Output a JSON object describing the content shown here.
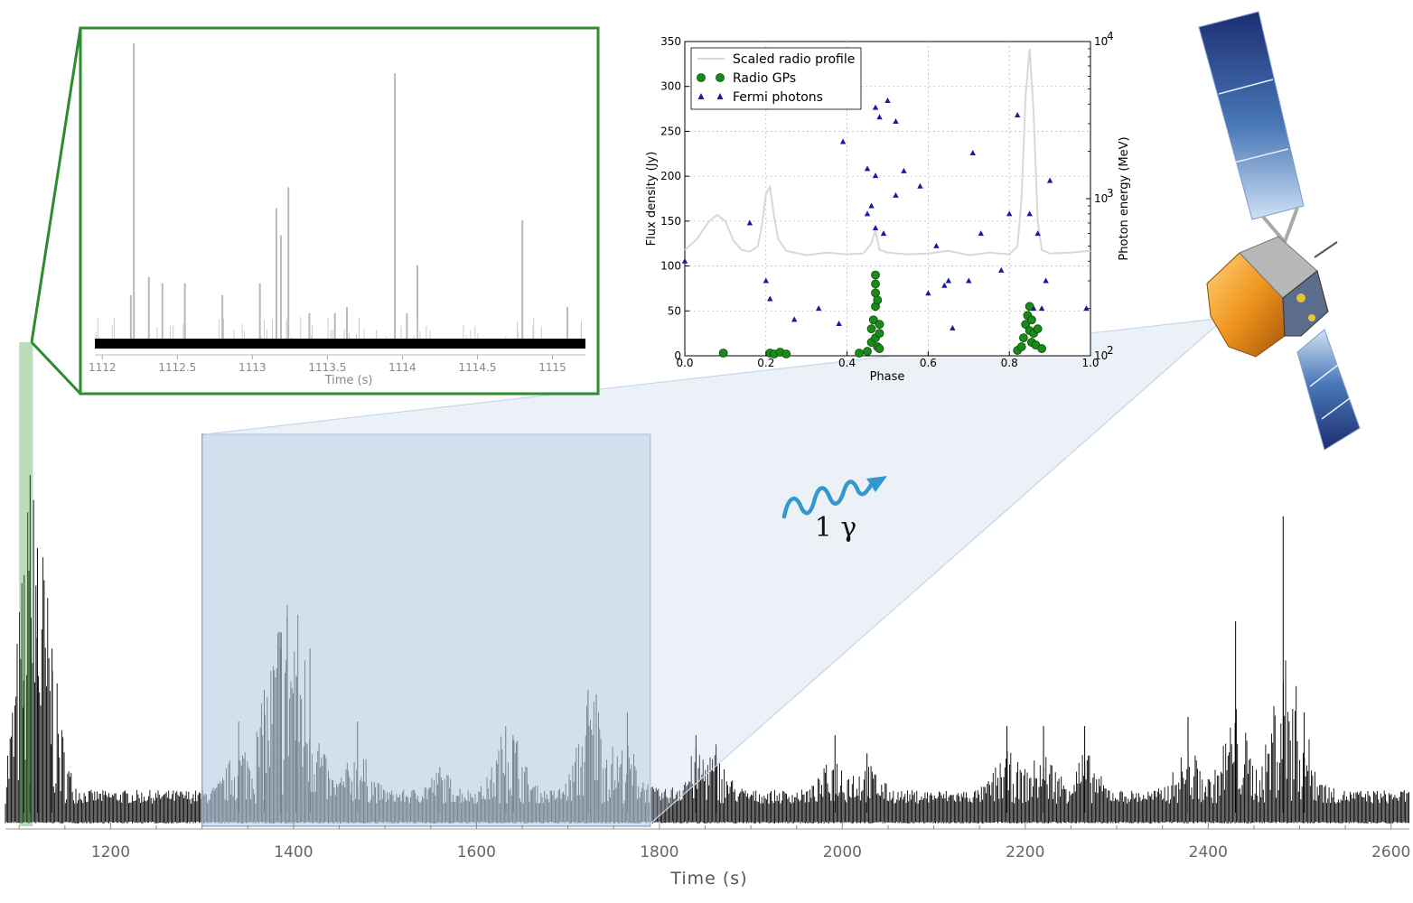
{
  "chart_data": [
    {
      "type": "line",
      "xlabel": "Time (s)",
      "ylabel": "",
      "xlim": [
        1085,
        2620
      ],
      "xticks": [
        1200,
        1400,
        1600,
        1800,
        2000,
        2200,
        2400,
        2600
      ],
      "grid": false,
      "highlighted_regions": [
        {
          "x": [
            1100,
            1115
          ]
        },
        {
          "x": [
            1300,
            1790
          ]
        }
      ],
      "series": [
        {
          "peaks": [
            {
              "x": 1112,
              "y": 0.74
            },
            {
              "x": 1120,
              "y": 0.58
            },
            {
              "x": 1136,
              "y": 0.36
            },
            {
              "x": 1105,
              "y": 0.29
            },
            {
              "x": 1340,
              "y": 0.2
            },
            {
              "x": 1368,
              "y": 0.27
            },
            {
              "x": 1386,
              "y": 0.36
            },
            {
              "x": 1393,
              "y": 0.43
            },
            {
              "x": 1403,
              "y": 0.3
            },
            {
              "x": 1418,
              "y": 0.36
            },
            {
              "x": 1470,
              "y": 0.2
            },
            {
              "x": 1560,
              "y": 0.1
            },
            {
              "x": 1632,
              "y": 0.19
            },
            {
              "x": 1640,
              "y": 0.17
            },
            {
              "x": 1722,
              "y": 0.27
            },
            {
              "x": 1731,
              "y": 0.26
            },
            {
              "x": 1765,
              "y": 0.22
            },
            {
              "x": 1840,
              "y": 0.17
            },
            {
              "x": 1862,
              "y": 0.15
            },
            {
              "x": 1992,
              "y": 0.17
            },
            {
              "x": 2027,
              "y": 0.13
            },
            {
              "x": 2180,
              "y": 0.19
            },
            {
              "x": 2220,
              "y": 0.19
            },
            {
              "x": 2265,
              "y": 0.19
            },
            {
              "x": 2378,
              "y": 0.21
            },
            {
              "x": 2430,
              "y": 0.42
            },
            {
              "x": 2482,
              "y": 0.65
            },
            {
              "x": 2505,
              "y": 0.22
            }
          ]
        }
      ]
    },
    {
      "type": "line",
      "xlabel": "Time (s)",
      "ylabel": "",
      "xlim": [
        1111.95,
        1115.22
      ],
      "xticks": [
        "1112",
        "1112.5",
        "1113",
        "1113.5",
        "1114",
        "1114.5",
        "1115"
      ],
      "series": [
        {
          "pulses": [
            {
              "x": 1112.21,
              "y": 1.0
            },
            {
              "x": 1113.95,
              "y": 0.9
            },
            {
              "x": 1113.24,
              "y": 0.52
            },
            {
              "x": 1113.16,
              "y": 0.45
            },
            {
              "x": 1114.8,
              "y": 0.41
            },
            {
              "x": 1113.19,
              "y": 0.36
            },
            {
              "x": 1114.1,
              "y": 0.26
            },
            {
              "x": 1112.31,
              "y": 0.22
            },
            {
              "x": 1113.05,
              "y": 0.2
            },
            {
              "x": 1112.4,
              "y": 0.2
            },
            {
              "x": 1112.55,
              "y": 0.2
            },
            {
              "x": 1112.8,
              "y": 0.16
            },
            {
              "x": 1112.19,
              "y": 0.16
            },
            {
              "x": 1115.1,
              "y": 0.12
            },
            {
              "x": 1113.63,
              "y": 0.12
            },
            {
              "x": 1113.38,
              "y": 0.1
            },
            {
              "x": 1113.55,
              "y": 0.1
            },
            {
              "x": 1114.03,
              "y": 0.1
            }
          ]
        }
      ]
    },
    {
      "type": "scatter",
      "xlabel": "Phase",
      "ylabel": "Flux density (Jy)",
      "y2label": "Photon energy (MeV)",
      "xlim": [
        0.0,
        1.0
      ],
      "ylim": [
        0,
        350
      ],
      "y2lim": [
        100,
        10000
      ],
      "y2scale": "log",
      "xticks": [
        "0.0",
        "0.2",
        "0.4",
        "0.6",
        "0.8",
        "1.0"
      ],
      "yticks": [
        "0",
        "50",
        "100",
        "150",
        "200",
        "250",
        "300",
        "350"
      ],
      "y2ticks": [
        "10",
        "10",
        "10"
      ],
      "y2tick_exponents": [
        "2",
        "3",
        "4"
      ],
      "grid": true,
      "legend": "top-left",
      "series": [
        {
          "name": "Scaled radio profile",
          "color": "#d8d8d8",
          "x": [
            0.0,
            0.03,
            0.06,
            0.08,
            0.1,
            0.12,
            0.14,
            0.16,
            0.18,
            0.19,
            0.2,
            0.21,
            0.22,
            0.23,
            0.25,
            0.3,
            0.35,
            0.4,
            0.44,
            0.46,
            0.47,
            0.48,
            0.5,
            0.55,
            0.6,
            0.65,
            0.7,
            0.75,
            0.8,
            0.82,
            0.83,
            0.84,
            0.85,
            0.86,
            0.87,
            0.88,
            0.9,
            0.95,
            1.0
          ],
          "y": [
            118,
            130,
            150,
            157,
            150,
            128,
            118,
            116,
            122,
            145,
            180,
            188,
            155,
            130,
            117,
            112,
            115,
            113,
            114,
            125,
            140,
            118,
            115,
            113,
            114,
            117,
            112,
            115,
            113,
            122,
            175,
            290,
            342,
            270,
            150,
            118,
            114,
            115,
            117
          ]
        },
        {
          "name": "Radio GPs",
          "color": "#1a8a1a",
          "x": [
            0.095,
            0.21,
            0.22,
            0.235,
            0.25,
            0.43,
            0.45,
            0.46,
            0.46,
            0.465,
            0.47,
            0.47,
            0.47,
            0.47,
            0.47,
            0.475,
            0.475,
            0.48,
            0.48,
            0.48,
            0.82,
            0.83,
            0.835,
            0.84,
            0.845,
            0.85,
            0.85,
            0.855,
            0.855,
            0.86,
            0.865,
            0.87,
            0.88
          ],
          "y": [
            3,
            3,
            2,
            4,
            2,
            3,
            5,
            15,
            30,
            40,
            55,
            70,
            80,
            90,
            20,
            10,
            62,
            35,
            25,
            8,
            6,
            10,
            20,
            35,
            45,
            55,
            28,
            40,
            15,
            25,
            12,
            30,
            8
          ]
        },
        {
          "name": "Fermi photons",
          "color": "#1a1aa0",
          "x": [
            0.0,
            0.16,
            0.2,
            0.21,
            0.27,
            0.33,
            0.38,
            0.39,
            0.45,
            0.45,
            0.46,
            0.47,
            0.47,
            0.47,
            0.48,
            0.49,
            0.5,
            0.52,
            0.52,
            0.54,
            0.58,
            0.6,
            0.62,
            0.64,
            0.65,
            0.66,
            0.7,
            0.71,
            0.73,
            0.78,
            0.8,
            0.82,
            0.85,
            0.86,
            0.87,
            0.88,
            0.89,
            0.9,
            0.99
          ],
          "y": [
            400,
            700,
            300,
            230,
            170,
            200,
            160,
            2300,
            1550,
            800,
            900,
            3800,
            650,
            1400,
            3300,
            600,
            4200,
            1050,
            3100,
            1500,
            1200,
            250,
            500,
            280,
            300,
            150,
            300,
            1950,
            600,
            350,
            800,
            3400,
            800,
            200,
            600,
            200,
            300,
            1300,
            200
          ]
        }
      ]
    }
  ],
  "annotation": {
    "gamma_label": "1 γ"
  },
  "colors": {
    "zoom_green": "#2e8b2e",
    "zoom_blue": "#b7cde3",
    "gamma_wave": "#3399cc",
    "signal": "#000000",
    "profile": "#d8d8d8",
    "gp_marker": "#1a8a1a",
    "photon_marker": "#1a1aa0"
  },
  "icons": {
    "satellite": "satellite-illustration"
  }
}
